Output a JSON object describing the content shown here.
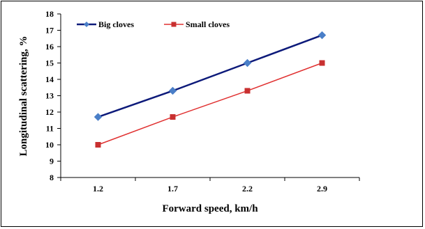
{
  "chart_data": {
    "type": "line",
    "categories": [
      "1.2",
      "1.7",
      "2.2",
      "2.9"
    ],
    "xlabel": "Forward speed, km/h",
    "ylabel": "Longitudinal scattering, %",
    "ylim": [
      8,
      18
    ],
    "yticks": [
      "8",
      "9",
      "10",
      "11",
      "12",
      "13",
      "14",
      "15",
      "16",
      "17",
      "18"
    ],
    "grid": false,
    "legend_position": "top-left",
    "series": [
      {
        "name": "Big cloves",
        "values": [
          11.7,
          13.3,
          15.0,
          16.7
        ],
        "color": "#0d1a7a",
        "marker_color": "#4a7fc8",
        "marker": "diamond"
      },
      {
        "name": "Small cloves",
        "values": [
          10.0,
          11.7,
          13.3,
          15.0
        ],
        "color": "#e03030",
        "marker_color": "#c83030",
        "marker": "square"
      }
    ]
  }
}
